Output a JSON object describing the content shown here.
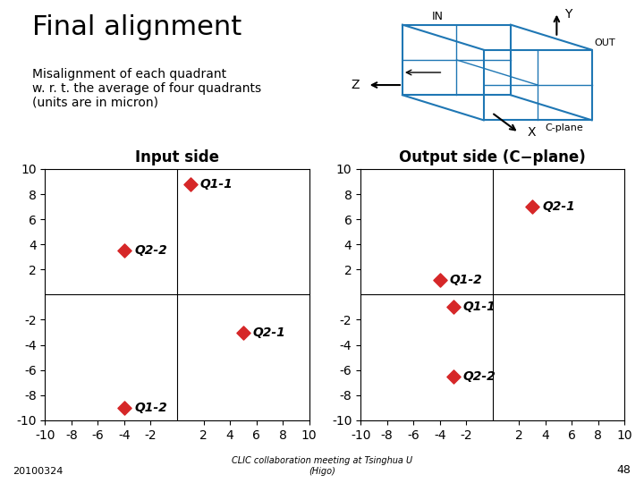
{
  "title": "Final alignment",
  "subtitle": "Misalignment of each quadrant\nw. r. t. the average of four quadrants\n(units are in micron)",
  "annotations": [
    "20100324",
    "CLIC collaboration meeting at Tsinghua U\n(Higo)",
    "48"
  ],
  "chart_data": [
    {
      "type": "diagram",
      "annotations": [
        "Y",
        "Z",
        "X",
        "IN",
        "OUT",
        "C-plane"
      ]
    },
    {
      "type": "scatter",
      "title": "Input side",
      "x": [
        1.0,
        -4.0,
        5.0,
        -4.0
      ],
      "values": [
        8.8,
        3.5,
        -3.0,
        -9.0
      ],
      "labels": [
        "Q1-1",
        "Q2-2",
        "Q2-1",
        "Q1-2"
      ],
      "marker": "diamond",
      "xlim": [
        -10,
        10
      ],
      "ylim": [
        -10,
        10
      ],
      "xticks": [
        -10,
        -8,
        -6,
        -4,
        -2,
        2,
        4,
        6,
        8,
        10
      ],
      "yticks": [
        -10,
        -8,
        -6,
        -4,
        -2,
        2,
        4,
        6,
        8,
        10
      ]
    },
    {
      "type": "scatter",
      "title": "Output side (C−plane)",
      "x": [
        3.0,
        -4.0,
        -3.0,
        -3.0
      ],
      "values": [
        7.0,
        1.2,
        -1.0,
        -6.5
      ],
      "labels": [
        "Q2-1",
        "Q1-2",
        "Q1-1",
        "Q2-2"
      ],
      "marker": "diamond",
      "xlim": [
        -10,
        10
      ],
      "ylim": [
        -10,
        10
      ],
      "xticks": [
        -10,
        -8,
        -6,
        -4,
        -2,
        2,
        4,
        6,
        8,
        10
      ],
      "yticks": [
        -10,
        -8,
        -6,
        -4,
        -2,
        2,
        4,
        6,
        8,
        10
      ]
    }
  ]
}
